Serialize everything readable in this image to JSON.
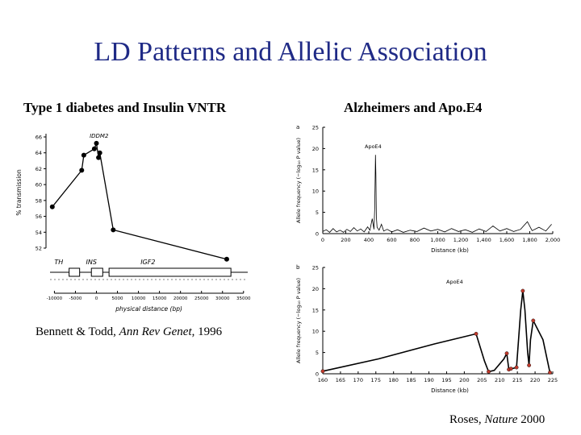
{
  "title": "LD Patterns and Allelic Association",
  "left": {
    "heading": "Type 1 diabetes and Insulin VNTR",
    "citation_prefix": "Bennett & Todd, ",
    "citation_journal": "Ann Rev Genet",
    "citation_suffix": ", 1996"
  },
  "right": {
    "heading": "Alzheimers and Apo.E4",
    "citation_prefix": "Roses, ",
    "citation_journal": "Nature",
    "citation_suffix": " 2000"
  },
  "colors": {
    "title": "#1f2a86",
    "line": "#000000",
    "marker_red": "#c0392b"
  },
  "chart_data": [
    {
      "type": "line",
      "peak_label": "IDDM2",
      "xlabel": "physical distance (bp)",
      "ylabel": "% transmission",
      "xlim": [
        -12000,
        36000
      ],
      "ylim": [
        52,
        66
      ],
      "x_ticks": [
        "-10000",
        "-5000",
        "0",
        "5000",
        "10000",
        "15000",
        "20000",
        "25000",
        "30000",
        "35000"
      ],
      "x_tick_values": [
        -10000,
        -5000,
        0,
        5000,
        10000,
        15000,
        20000,
        25000,
        30000,
        35000
      ],
      "y_ticks": [
        "52",
        "54",
        "56",
        "58",
        "60",
        "62",
        "64",
        "66"
      ],
      "y_tick_values": [
        52,
        54,
        56,
        58,
        60,
        62,
        64,
        66
      ],
      "points": [
        {
          "x": -10500,
          "y": 57.2
        },
        {
          "x": -3500,
          "y": 61.8
        },
        {
          "x": -3000,
          "y": 63.7
        },
        {
          "x": -500,
          "y": 64.5
        },
        {
          "x": 0,
          "y": 65.2
        },
        {
          "x": 500,
          "y": 63.4
        },
        {
          "x": 800,
          "y": 64.0
        },
        {
          "x": 4000,
          "y": 54.3
        },
        {
          "x": 31000,
          "y": 50.6
        }
      ],
      "genes": [
        "TH",
        "INS",
        "IGF2"
      ]
    },
    {
      "type": "line",
      "panel_label": "a",
      "peak_label": "ApoE4",
      "xlabel": "Distance (kb)",
      "ylabel": "Allele frequency (−log₁₀ P value)",
      "xlim": [
        0,
        2000
      ],
      "ylim": [
        0,
        25
      ],
      "x_ticks": [
        "0",
        "200",
        "400",
        "600",
        "800",
        "1,000",
        "1,200",
        "1,400",
        "1,600",
        "1,800",
        "2,000"
      ],
      "x_tick_values": [
        0,
        200,
        400,
        600,
        800,
        1000,
        1200,
        1400,
        1600,
        1800,
        2000
      ],
      "y_ticks": [
        "0",
        "5",
        "10",
        "15",
        "20",
        "25"
      ],
      "y_tick_values": [
        0,
        5,
        10,
        15,
        20,
        25
      ],
      "series": [
        {
          "values": [
            [
              0,
              0.5
            ],
            [
              30,
              0.9
            ],
            [
              60,
              0.3
            ],
            [
              90,
              1.2
            ],
            [
              120,
              0.4
            ],
            [
              150,
              0.8
            ],
            [
              180,
              0.3
            ],
            [
              210,
              1.0
            ],
            [
              240,
              0.5
            ],
            [
              270,
              1.4
            ],
            [
              300,
              0.6
            ],
            [
              330,
              1.1
            ],
            [
              360,
              0.4
            ],
            [
              390,
              1.6
            ],
            [
              410,
              0.8
            ],
            [
              430,
              3.5
            ],
            [
              445,
              1.0
            ],
            [
              452,
              6.0
            ],
            [
              458,
              18.5
            ],
            [
              462,
              14.0
            ],
            [
              466,
              4.0
            ],
            [
              472,
              1.5
            ],
            [
              490,
              0.8
            ],
            [
              510,
              2.2
            ],
            [
              530,
              0.6
            ],
            [
              560,
              1.0
            ],
            [
              600,
              0.4
            ],
            [
              650,
              0.9
            ],
            [
              700,
              0.3
            ],
            [
              760,
              0.8
            ],
            [
              820,
              0.5
            ],
            [
              880,
              1.3
            ],
            [
              940,
              0.6
            ],
            [
              1000,
              1.0
            ],
            [
              1060,
              0.4
            ],
            [
              1120,
              1.2
            ],
            [
              1180,
              0.5
            ],
            [
              1240,
              0.9
            ],
            [
              1300,
              0.3
            ],
            [
              1360,
              1.1
            ],
            [
              1420,
              0.5
            ],
            [
              1480,
              1.8
            ],
            [
              1540,
              0.6
            ],
            [
              1600,
              1.2
            ],
            [
              1660,
              0.5
            ],
            [
              1720,
              1.0
            ],
            [
              1780,
              2.8
            ],
            [
              1820,
              0.7
            ],
            [
              1880,
              1.5
            ],
            [
              1940,
              0.6
            ],
            [
              1990,
              2.2
            ]
          ]
        }
      ]
    },
    {
      "type": "line",
      "panel_label": "b",
      "peak_label": "ApoE4",
      "xlabel": "Distance (kb)",
      "ylabel": "Allele frequency (−log₁₀ P value)",
      "xlim": [
        160,
        325
      ],
      "ylim": [
        0,
        25
      ],
      "x_ticks": [
        "160",
        "165",
        "170",
        "175",
        "180",
        "185",
        "190",
        "195",
        "200",
        "205",
        "210",
        "215",
        "220",
        "225"
      ],
      "y_ticks": [
        "0",
        "5",
        "10",
        "15",
        "20",
        "25"
      ],
      "y_tick_values": [
        0,
        5,
        10,
        15,
        20,
        25
      ],
      "series": [
        {
          "values": [
            [
              160,
              0.6
            ],
            [
              200,
              3.5
            ],
            [
              240,
              7.0
            ],
            [
              260,
              8.6
            ],
            [
              270,
              9.4
            ],
            [
              276,
              3.0
            ],
            [
              279,
              0.5
            ],
            [
              283,
              0.8
            ],
            [
              290,
              3.5
            ],
            [
              292,
              4.8
            ],
            [
              293.5,
              1.0
            ],
            [
              295,
              1.2
            ],
            [
              297,
              1.3
            ],
            [
              299,
              1.5
            ],
            [
              302,
              15.0
            ],
            [
              303.5,
              19.5
            ],
            [
              305,
              15.0
            ],
            [
              307,
              5.0
            ],
            [
              308,
              2.0
            ],
            [
              309,
              8.0
            ],
            [
              311,
              12.5
            ],
            [
              318,
              8.0
            ],
            [
              323,
              0.3
            ]
          ]
        }
      ],
      "markers": [
        [
          160,
          0.6
        ],
        [
          270,
          9.4
        ],
        [
          279,
          0.5
        ],
        [
          292,
          4.8
        ],
        [
          293.5,
          1.0
        ],
        [
          295,
          1.2
        ],
        [
          299,
          1.5
        ],
        [
          303.5,
          19.5
        ],
        [
          308,
          2.0
        ],
        [
          311,
          12.5
        ],
        [
          323,
          0.3
        ]
      ]
    }
  ]
}
